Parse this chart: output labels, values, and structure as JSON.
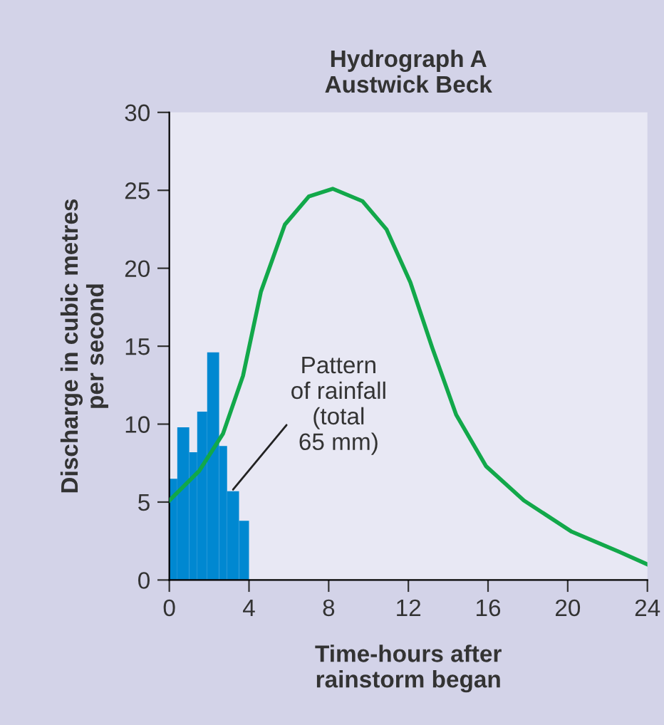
{
  "chart_data": {
    "type": "line",
    "title": "Hydrograph A\nAustwick Beck",
    "xlabel": "Time-hours after\nrainstorm began",
    "ylabel": "Discharge in cubic metres\nper second",
    "series": [
      {
        "type": "histogram",
        "color": "#0088d1",
        "bins": [
          0,
          0.4,
          1,
          1.4,
          1.9,
          2.5,
          2.9,
          3.5,
          4
        ],
        "values": [
          6.5,
          9.8,
          8.2,
          10.8,
          14.6,
          8.6,
          5.7,
          3.8
        ]
      },
      {
        "color": "#12a84a",
        "x": [
          0,
          1.5,
          2.7,
          3.7,
          4.6,
          5.8,
          7,
          8.2,
          9.7,
          10.9,
          12.1,
          13.2,
          14.4,
          15.9,
          17.8,
          20.2,
          22.6,
          24
        ],
        "values": [
          5.1,
          7,
          9.4,
          13.1,
          18.5,
          22.8,
          24.6,
          25.1,
          24.3,
          22.5,
          19.1,
          14.9,
          10.6,
          7.3,
          5.1,
          3.1,
          1.8,
          1
        ]
      }
    ],
    "annotations": [
      {
        "text": "Pattern\nof rainfall\n(total\n65 mm)",
        "x": 3.2,
        "y": 5.8
      }
    ],
    "xlim": [
      0,
      24
    ],
    "xticks": [
      0,
      4,
      8,
      12,
      16,
      20,
      24
    ],
    "ylim": [
      0,
      30
    ],
    "yticks": [
      0,
      5,
      10,
      15,
      20,
      25,
      30
    ],
    "grid": false,
    "legend": false
  }
}
